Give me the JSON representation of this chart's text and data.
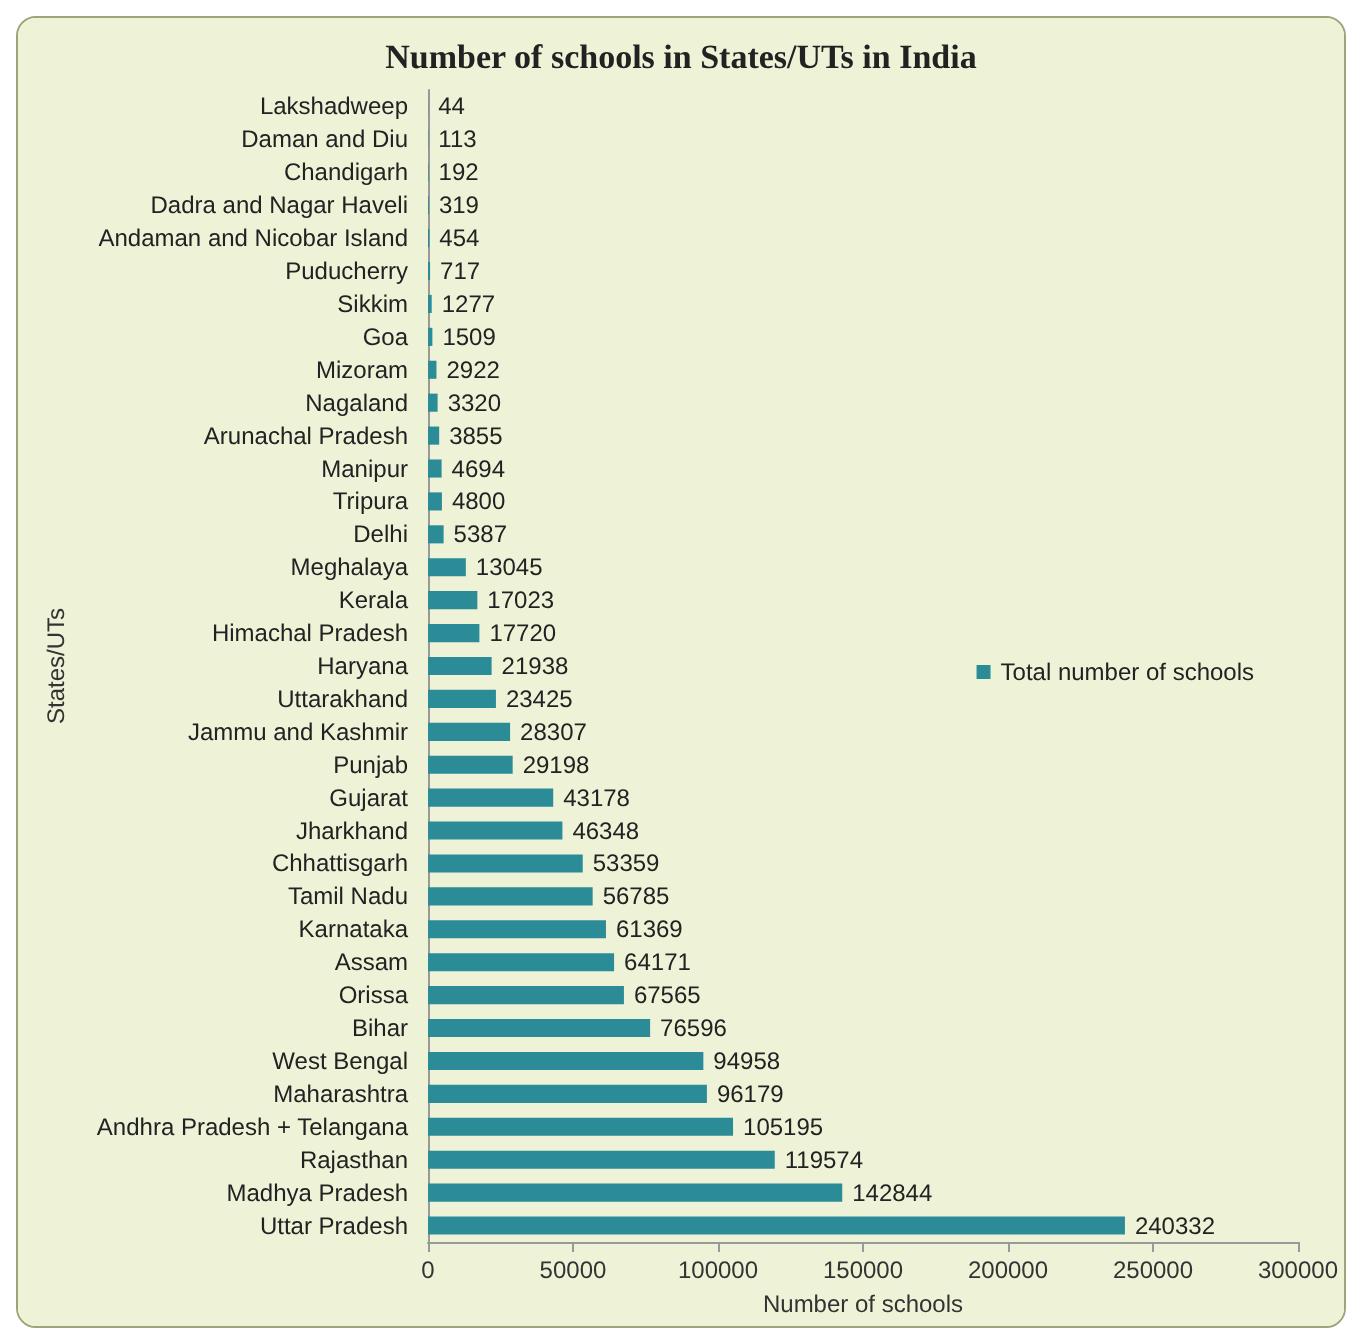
{
  "chart_data": {
    "type": "bar",
    "orientation": "horizontal",
    "title": "Number of schools in States/UTs in India",
    "xlabel": "Number of schools",
    "ylabel": "States/UTs",
    "categories": [
      "Lakshadweep",
      "Daman and Diu",
      "Chandigarh",
      "Dadra and Nagar Haveli",
      "Andaman and Nicobar Island",
      "Puducherry",
      "Sikkim",
      "Goa",
      "Mizoram",
      "Nagaland",
      "Arunachal Pradesh",
      "Manipur",
      "Tripura",
      "Delhi",
      "Meghalaya",
      "Kerala",
      "Himachal Pradesh",
      "Haryana",
      "Uttarakhand",
      "Jammu and Kashmir",
      "Punjab",
      "Gujarat",
      "Jharkhand",
      "Chhattisgarh",
      "Tamil Nadu",
      "Karnataka",
      "Assam",
      "Orissa",
      "Bihar",
      "West Bengal",
      "Maharashtra",
      "Andhra Pradesh + Telangana",
      "Rajasthan",
      "Madhya Pradesh",
      "Uttar Pradesh"
    ],
    "series": [
      {
        "name": "Total number of schools",
        "color": "#2b8c98",
        "values": [
          44,
          113,
          192,
          319,
          454,
          717,
          1277,
          1509,
          2922,
          3320,
          3855,
          4694,
          4800,
          5387,
          13045,
          17023,
          17720,
          21938,
          23425,
          28307,
          29198,
          43178,
          46348,
          53359,
          56785,
          61369,
          64171,
          67565,
          76596,
          94958,
          96179,
          105195,
          119574,
          142844,
          240332
        ]
      }
    ],
    "xlim": [
      0,
      300000
    ],
    "xticks": [
      0,
      50000,
      100000,
      150000,
      200000,
      250000,
      300000
    ],
    "data_labels": true,
    "grid": false,
    "legend": "right"
  }
}
